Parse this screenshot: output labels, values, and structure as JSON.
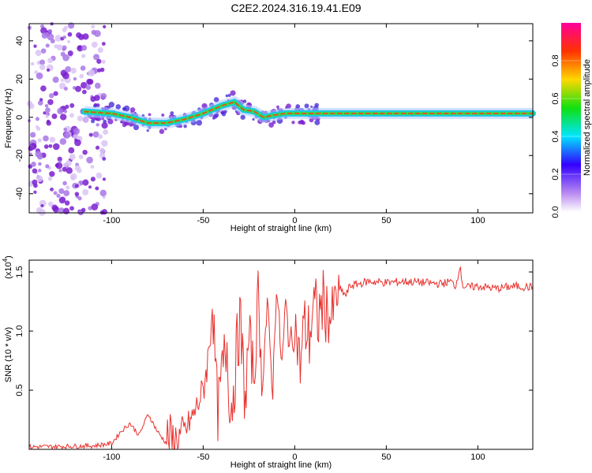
{
  "title": "C2E2.2024.316.19.41.E09",
  "colors": {
    "snr_line": "#e8302c",
    "frame": "#000000",
    "blob": "#7a1fd0"
  },
  "chart_data": [
    {
      "type": "heatmap",
      "title": "C2E2.2024.316.19.41.E09",
      "xlabel": "Height of straight line (km)",
      "ylabel": "Frequency (Hz)",
      "xlim": [
        -145,
        130
      ],
      "ylim": [
        -50,
        49
      ],
      "xticks": [
        -100,
        -50,
        0,
        50,
        100
      ],
      "xtick_labels": [
        "-100",
        "-50",
        "0",
        "50",
        "100"
      ],
      "yticks": [
        -40,
        -20,
        0,
        20,
        40
      ],
      "ytick_labels": [
        "-40",
        "-20",
        "0",
        "20",
        "40"
      ],
      "colorbar": {
        "label": "Normalized spectral amplitude",
        "range": [
          0,
          1
        ],
        "ticks": [
          0.0,
          0.2,
          0.4,
          0.6,
          0.8
        ],
        "tick_labels": [
          "0.0",
          "0.2",
          "0.4",
          "0.6",
          "0.8"
        ]
      },
      "ridge": {
        "x": [
          -115,
          -100,
          -90,
          -80,
          -70,
          -60,
          -50,
          -45,
          -40,
          -33,
          -28,
          -22,
          -17,
          -12,
          -5,
          0,
          10,
          50,
          100,
          130
        ],
        "y": [
          3,
          2,
          0,
          -3,
          -3,
          -1,
          2,
          4,
          6,
          8,
          4,
          3,
          0,
          1,
          2,
          2,
          2,
          2,
          2,
          2
        ]
      }
    },
    {
      "type": "line",
      "xlabel": "Height of straight line (km)",
      "ylabel": "SNR (10 * v/v)",
      "y_multiplier": "(x10",
      "y_multiplier_exp": "4",
      "xlim": [
        -145,
        130
      ],
      "ylim": [
        0,
        1.6
      ],
      "xticks": [
        -100,
        -50,
        0,
        50,
        100
      ],
      "xtick_labels": [
        "-100",
        "-50",
        "0",
        "50",
        "100"
      ],
      "yticks": [
        0.5,
        1.0,
        1.5
      ],
      "ytick_labels": [
        "0.5",
        "1.0",
        "1.5"
      ],
      "series": [
        {
          "name": "SNR",
          "x": [
            -145,
            -110,
            -100,
            -95,
            -90,
            -85,
            -80,
            -75,
            -70,
            -65,
            -60,
            -55,
            -50,
            -47,
            -45,
            -42,
            -40,
            -37,
            -35,
            -32,
            -30,
            -27,
            -25,
            -22,
            -20,
            -18,
            -15,
            -12,
            -10,
            -7,
            -5,
            -2,
            0,
            3,
            5,
            8,
            10,
            13,
            15,
            18,
            20,
            22,
            25,
            28,
            30,
            35,
            40,
            50,
            60,
            70,
            80,
            85,
            88,
            90,
            92,
            95,
            100,
            110,
            120,
            130
          ],
          "y": [
            0.02,
            0.03,
            0.05,
            0.15,
            0.22,
            0.12,
            0.3,
            0.15,
            0.05,
            0.07,
            0.15,
            0.3,
            0.5,
            0.8,
            1.25,
            0.3,
            0.6,
            0.9,
            0.3,
            0.75,
            1.1,
            0.4,
            0.95,
            0.6,
            1.35,
            0.55,
            1.2,
            0.5,
            1.4,
            0.7,
            1.2,
            0.85,
            1.1,
            0.7,
            1.05,
            0.95,
            1.2,
            1.1,
            1.25,
            1.15,
            1.1,
            1.25,
            1.35,
            1.3,
            1.38,
            1.4,
            1.42,
            1.41,
            1.42,
            1.41,
            1.4,
            1.42,
            1.38,
            1.55,
            1.38,
            1.37,
            1.38,
            1.36,
            1.38,
            1.37
          ]
        }
      ]
    }
  ]
}
